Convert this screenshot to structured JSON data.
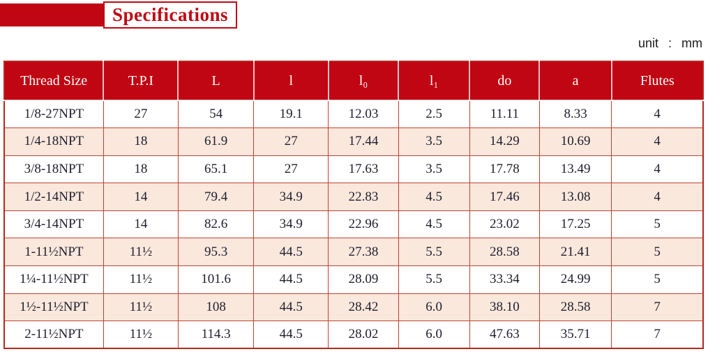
{
  "page": {
    "title": "Specifications",
    "unit_label": "unit : mm"
  },
  "colors": {
    "primary_red": "#c00612",
    "row_alt_pink": "#fae8dd",
    "grid_red": "#c2402f",
    "header_text": "#ffffff",
    "body_text": "#1e1e2d"
  },
  "chart_data": {
    "type": "table",
    "title": "Specifications",
    "unit": "mm",
    "columns": [
      "Thread Size",
      "T.P.I",
      "L",
      "l",
      "l₀",
      "l₁",
      "do",
      "a",
      "Flutes"
    ],
    "column_widths_percent": [
      14.2,
      10.7,
      10.8,
      10.7,
      10.0,
      10.2,
      10.0,
      10.3,
      13.1
    ],
    "rows": [
      [
        "1/8-27NPT",
        "27",
        "54",
        "19.1",
        "12.03",
        "2.5",
        "11.11",
        "8.33",
        "4"
      ],
      [
        "1/4-18NPT",
        "18",
        "61.9",
        "27",
        "17.44",
        "3.5",
        "14.29",
        "10.69",
        "4"
      ],
      [
        "3/8-18NPT",
        "18",
        "65.1",
        "27",
        "17.63",
        "3.5",
        "17.78",
        "13.49",
        "4"
      ],
      [
        "1/2-14NPT",
        "14",
        "79.4",
        "34.9",
        "22.83",
        "4.5",
        "17.46",
        "13.08",
        "4"
      ],
      [
        "3/4-14NPT",
        "14",
        "82.6",
        "34.9",
        "22.96",
        "4.5",
        "23.02",
        "17.25",
        "5"
      ],
      [
        "1-11½NPT",
        "11½",
        "95.3",
        "44.5",
        "27.38",
        "5.5",
        "28.58",
        "21.41",
        "5"
      ],
      [
        "1¼-11½NPT",
        "11½",
        "101.6",
        "44.5",
        "28.09",
        "5.5",
        "33.34",
        "24.99",
        "5"
      ],
      [
        "1½-11½NPT",
        "11½",
        "108",
        "44.5",
        "28.42",
        "6.0",
        "38.10",
        "28.58",
        "7"
      ],
      [
        "2-11½NPT",
        "11½",
        "114.3",
        "44.5",
        "28.02",
        "6.0",
        "47.63",
        "35.71",
        "7"
      ]
    ]
  }
}
